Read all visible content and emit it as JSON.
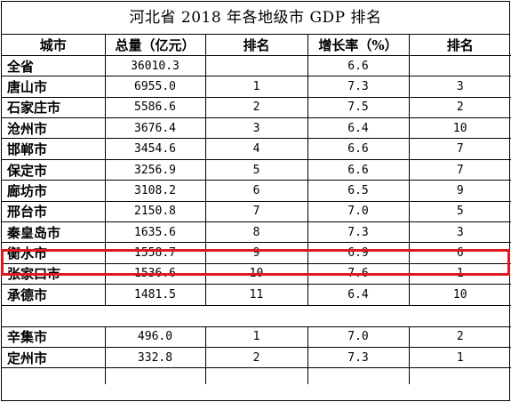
{
  "title": "河北省 2018 年各地级市 GDP 排名",
  "headers": [
    "城市",
    "总量（亿元）",
    "排名",
    "增长率（%）",
    "排名"
  ],
  "rows": [
    [
      "全省",
      "36010.3",
      "",
      "6.6",
      ""
    ],
    [
      "唐山市",
      "6955.0",
      "1",
      "7.3",
      "3"
    ],
    [
      "石家庄市",
      "5586.6",
      "2",
      "7.5",
      "2"
    ],
    [
      "沧州市",
      "3676.4",
      "3",
      "6.4",
      "10"
    ],
    [
      "邯郸市",
      "3454.6",
      "4",
      "6.6",
      "7"
    ],
    [
      "保定市",
      "3256.9",
      "5",
      "6.6",
      "7"
    ],
    [
      "廊坊市",
      "3108.2",
      "6",
      "6.5",
      "9"
    ],
    [
      "邢台市",
      "2150.8",
      "7",
      "7.0",
      "5"
    ],
    [
      "秦皇岛市",
      "1635.6",
      "8",
      "7.3",
      "3"
    ],
    [
      "衡水市",
      "1558.7",
      "9",
      "6.9",
      "6"
    ],
    [
      "张家口市",
      "1536.6",
      "10",
      "7.6",
      "1"
    ],
    [
      "承德市",
      "1481.5",
      "11",
      "6.4",
      "10"
    ]
  ],
  "extra_rows": [
    [
      "辛集市",
      "496.0",
      "1",
      "7.0",
      "2"
    ],
    [
      "定州市",
      "332.8",
      "2",
      "7.3",
      "1"
    ]
  ],
  "highlight_color": "#e0191c"
}
